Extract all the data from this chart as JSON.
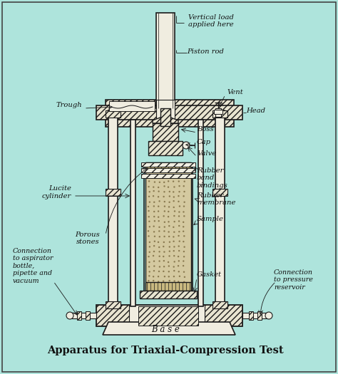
{
  "bg_color": "#aee4dc",
  "line_color": "#1a1a1a",
  "fill_white": "#f0ede0",
  "fill_hatch": "#e8e4d0",
  "fill_sample": "#d4c9a0",
  "title": "Apparatus for Triaxial-Compression Test",
  "title_fontsize": 10.5,
  "labels": {
    "vertical_load": "Vertical load\napplied here",
    "piston_rod": "Piston rod",
    "trough": "Trough",
    "vent": "Vent",
    "head": "Head",
    "boss": "Boss",
    "cap": "Cap",
    "valve": "Valve",
    "lucite_cylinder": "Lucite\ncylinder",
    "rubber_band": "Rubber\nband\nbindings",
    "rubber_membrane": "Rubber\nmembrane",
    "porous_stones": "Porous\nstones",
    "sample": "Sample",
    "gasket": "Gasket",
    "connection_aspirator": "Connection\nto aspirator\nbottle,\npipette and\nvacuum",
    "connection_pressure": "Connection\nto pressure\nreservoir",
    "base": "B a s e"
  }
}
